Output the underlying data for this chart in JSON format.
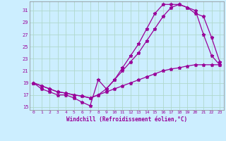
{
  "xlabel": "Windchill (Refroidissement éolien,°C)",
  "bg_color": "#cceeff",
  "grid_color": "#b0d8cc",
  "line_color": "#990099",
  "xlim": [
    -0.5,
    23.5
  ],
  "ylim": [
    14.5,
    32.5
  ],
  "xticks": [
    0,
    1,
    2,
    3,
    4,
    5,
    6,
    7,
    8,
    9,
    10,
    11,
    12,
    13,
    14,
    15,
    16,
    17,
    18,
    19,
    20,
    21,
    22,
    23
  ],
  "yticks": [
    15,
    17,
    19,
    21,
    23,
    25,
    27,
    29,
    31
  ],
  "series1_x": [
    0,
    1,
    2,
    3,
    4,
    5,
    6,
    7,
    8,
    9,
    10,
    11,
    12,
    13,
    14,
    15,
    16,
    17,
    18,
    19,
    20,
    21,
    22,
    23
  ],
  "series1_y": [
    19.0,
    18.0,
    17.5,
    17.0,
    17.0,
    16.5,
    15.8,
    15.2,
    19.5,
    18.0,
    19.5,
    21.5,
    23.5,
    25.5,
    28.0,
    30.5,
    32.0,
    32.0,
    32.0,
    31.5,
    31.0,
    27.0,
    23.5,
    22.0
  ],
  "series2_x": [
    0,
    1,
    2,
    3,
    4,
    5,
    6,
    7,
    8,
    9,
    10,
    11,
    12,
    13,
    14,
    15,
    16,
    17,
    18,
    19,
    20,
    21,
    22,
    23
  ],
  "series2_y": [
    19.0,
    18.5,
    18.0,
    17.5,
    17.3,
    17.0,
    16.8,
    16.5,
    17.0,
    18.0,
    19.5,
    21.0,
    22.5,
    24.0,
    26.0,
    28.0,
    30.0,
    31.5,
    32.0,
    31.5,
    30.5,
    30.0,
    26.5,
    22.5
  ],
  "series3_x": [
    0,
    1,
    2,
    3,
    4,
    5,
    6,
    7,
    8,
    9,
    10,
    11,
    12,
    13,
    14,
    15,
    16,
    17,
    18,
    19,
    20,
    21,
    22,
    23
  ],
  "series3_y": [
    19.0,
    18.5,
    18.0,
    17.5,
    17.3,
    17.0,
    16.8,
    16.5,
    17.0,
    17.5,
    18.0,
    18.5,
    19.0,
    19.5,
    20.0,
    20.5,
    21.0,
    21.3,
    21.5,
    21.8,
    22.0,
    22.0,
    22.0,
    22.0
  ]
}
